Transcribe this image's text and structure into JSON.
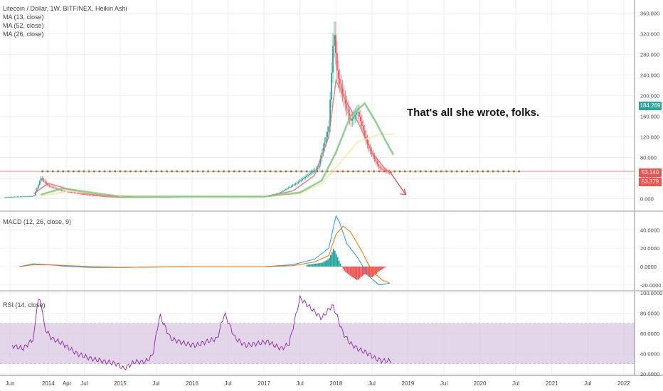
{
  "legend": {
    "symbol": "Litecoin / Dollar, 1W, BITFINEX, Heikin Ashi",
    "ma1": "MA (13, close)",
    "ma2": "MA (52, close)",
    "ma3": "MA (26, close)",
    "macd": "MACD (12, 26, close, 9)",
    "rsi": "RSI (14, close)"
  },
  "annotation": "That's all she wrote, folks.",
  "price_tags": {
    "last": "184.269",
    "line": "53.140",
    "ma": "53.379"
  },
  "colors": {
    "up": "#26a69a",
    "down": "#ef5350",
    "ma13": "#e57373",
    "ma52": "#f6e49a",
    "ma26": "#81c784",
    "macd": "#2196f3",
    "signal": "#ff6d00",
    "rsi": "#8e24aa",
    "rsi_band": "#d7c5e0",
    "last_tag": "#26a69a",
    "line_tag": "#ef5350"
  },
  "chart_data": [
    {
      "type": "line",
      "title": "Litecoin / Dollar, 1W, BITFINEX, Heikin Ashi",
      "ylim": [
        -20,
        380
      ],
      "y_ticks": [
        "0.000",
        "40.000",
        "80.000",
        "120.000",
        "160.000",
        "200.000",
        "240.000",
        "280.000",
        "320.000",
        "360.000"
      ],
      "x_ticks": [
        "Jun",
        "2014",
        "Apr",
        "Jul",
        "2015",
        "Jul",
        "2016",
        "Jul",
        "2017",
        "Jul",
        "2018",
        "Jul",
        "2019",
        "Jul",
        "2020",
        "Jul",
        "2021",
        "Jul",
        "2022"
      ],
      "horizontal_line": 53.14,
      "series": [
        {
          "name": "Price",
          "x": [
            2013.4,
            2013.8,
            2013.9,
            2014.0,
            2014.2,
            2014.5,
            2014.8,
            2015.0,
            2015.5,
            2016.0,
            2016.5,
            2017.0,
            2017.2,
            2017.45,
            2017.6,
            2017.75,
            2017.9,
            2017.97,
            2018.02,
            2018.1,
            2018.2,
            2018.3,
            2018.45,
            2018.6,
            2018.75
          ],
          "y": [
            3,
            5,
            40,
            25,
            15,
            8,
            4,
            3,
            3,
            4,
            4,
            4,
            10,
            30,
            45,
            60,
            140,
            330,
            240,
            200,
            150,
            170,
            100,
            60,
            50
          ]
        },
        {
          "name": "MA (13, close)",
          "x": [
            2013.8,
            2014.0,
            2014.5,
            2015.0,
            2016.0,
            2017.0,
            2017.4,
            2017.7,
            2017.9,
            2018.0,
            2018.1,
            2018.3,
            2018.5,
            2018.7,
            2018.78
          ],
          "y": [
            10,
            30,
            10,
            3,
            4,
            4,
            15,
            45,
            120,
            230,
            200,
            150,
            90,
            55,
            50
          ]
        },
        {
          "name": "MA (52, close)",
          "x": [
            2013.9,
            2014.3,
            2014.8,
            2015.3,
            2016.0,
            2017.0,
            2017.5,
            2017.8,
            2018.0,
            2018.3,
            2018.6,
            2018.8
          ],
          "y": [
            5,
            15,
            8,
            4,
            4,
            4,
            10,
            30,
            60,
            110,
            125,
            125
          ]
        },
        {
          "name": "MA (26, close)",
          "x": [
            2013.9,
            2014.2,
            2014.6,
            2015.0,
            2016.0,
            2017.0,
            2017.5,
            2017.8,
            2018.0,
            2018.2,
            2018.4,
            2018.55,
            2018.7,
            2018.8
          ],
          "y": [
            8,
            20,
            12,
            4,
            4,
            4,
            12,
            35,
            90,
            160,
            185,
            150,
            110,
            85
          ]
        }
      ],
      "projection": {
        "x": [
          2018.75,
          2018.97
        ],
        "y": [
          52,
          8
        ]
      }
    },
    {
      "type": "bar",
      "title": "MACD (12, 26, close, 9)",
      "ylim": [
        -24,
        58
      ],
      "y_ticks": [
        "-20.0000",
        "0.0000",
        "20.0000",
        "40.0000"
      ],
      "series": [
        {
          "name": "MACD",
          "x": [
            2013.6,
            2013.8,
            2014.0,
            2014.3,
            2014.6,
            2015.0,
            2016.0,
            2017.0,
            2017.4,
            2017.7,
            2017.9,
            2018.0,
            2018.05,
            2018.15,
            2018.3,
            2018.45,
            2018.6,
            2018.75
          ],
          "y": [
            0,
            3,
            2,
            0,
            -1,
            -1,
            0,
            0,
            2,
            8,
            20,
            55,
            48,
            25,
            10,
            -10,
            -20,
            -18
          ]
        },
        {
          "name": "Signal",
          "x": [
            2013.6,
            2013.8,
            2014.0,
            2014.3,
            2014.6,
            2015.0,
            2016.0,
            2017.0,
            2017.4,
            2017.7,
            2017.9,
            2018.0,
            2018.1,
            2018.2,
            2018.35,
            2018.5,
            2018.65,
            2018.75
          ],
          "y": [
            0,
            2,
            2,
            1,
            0,
            -1,
            0,
            0,
            1,
            5,
            12,
            35,
            44,
            38,
            18,
            -5,
            -15,
            -18
          ]
        },
        {
          "name": "Histogram",
          "x": [
            2017.6,
            2017.7,
            2017.8,
            2017.9,
            2017.97,
            2018.05,
            2018.12,
            2018.2,
            2018.3,
            2018.4,
            2018.5,
            2018.6,
            2018.7
          ],
          "y": [
            2,
            3,
            4,
            8,
            20,
            5,
            -5,
            -10,
            -15,
            -8,
            -12,
            -5,
            0
          ]
        }
      ]
    },
    {
      "type": "line",
      "title": "RSI (14, close)",
      "ylim": [
        20,
        100
      ],
      "y_ticks": [
        "20.0000",
        "40.0000",
        "60.0000",
        "80.0000",
        "100.0000"
      ],
      "band": [
        30,
        70
      ],
      "series": [
        {
          "name": "RSI",
          "x": [
            2013.5,
            2013.65,
            2013.8,
            2013.85,
            2013.9,
            2013.95,
            2014.05,
            2014.2,
            2014.4,
            2014.6,
            2014.8,
            2014.95,
            2015.05,
            2015.2,
            2015.35,
            2015.45,
            2015.55,
            2015.7,
            2015.9,
            2016.05,
            2016.2,
            2016.35,
            2016.45,
            2016.6,
            2016.75,
            2016.9,
            2017.05,
            2017.15,
            2017.25,
            2017.35,
            2017.5,
            2017.65,
            2017.8,
            2017.95,
            2018.0,
            2018.1,
            2018.2,
            2018.3,
            2018.45,
            2018.55,
            2018.65,
            2018.78
          ],
          "y": [
            48,
            45,
            55,
            92,
            92,
            65,
            55,
            50,
            40,
            35,
            32,
            30,
            25,
            32,
            32,
            38,
            78,
            55,
            50,
            48,
            52,
            55,
            80,
            55,
            48,
            50,
            52,
            48,
            45,
            50,
            95,
            85,
            75,
            88,
            80,
            60,
            50,
            45,
            40,
            35,
            33,
            33
          ]
        }
      ]
    }
  ]
}
